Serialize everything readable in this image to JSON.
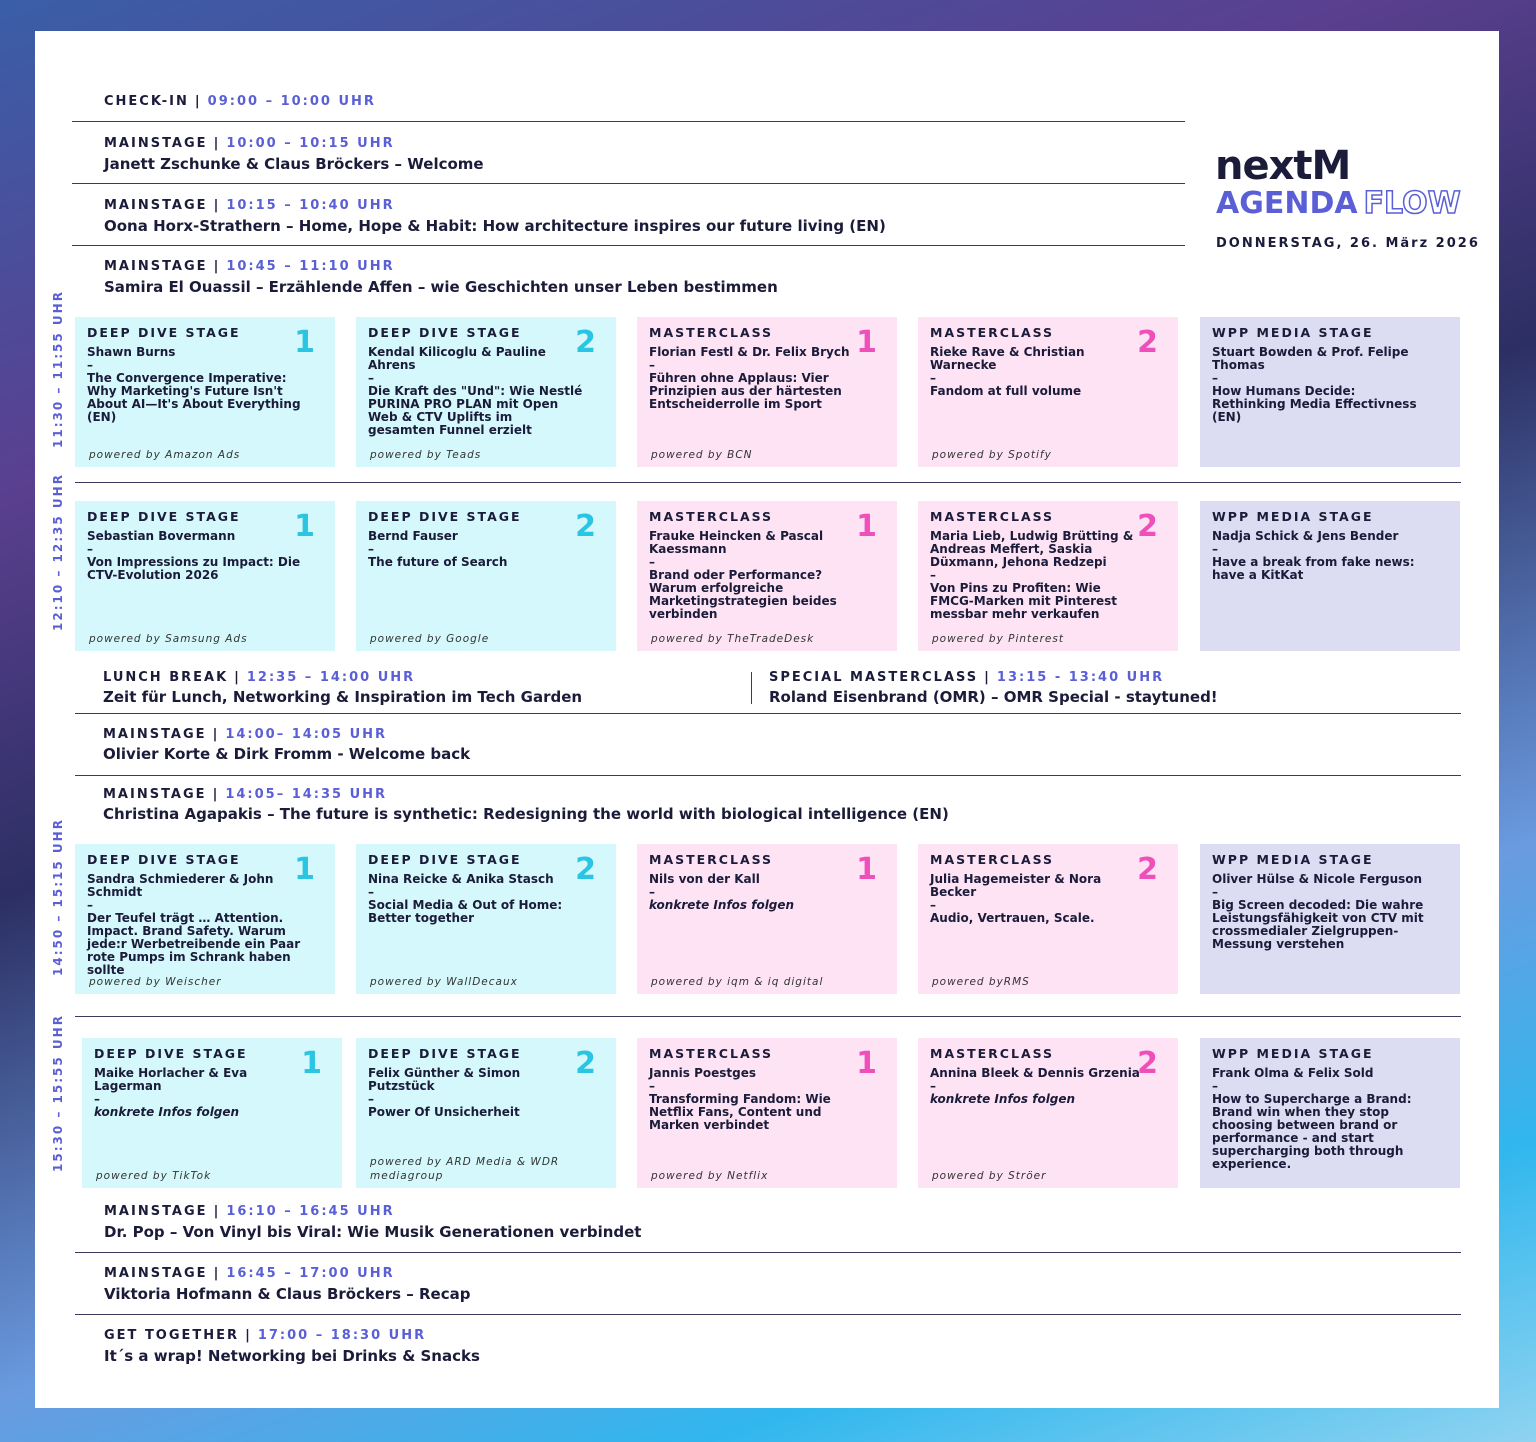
{
  "brand": {
    "logo": "nextM",
    "agenda": "AGENDA",
    "flow": "FLOW",
    "date": "DONNERSTAG, 26. März 2026"
  },
  "rows": {
    "checkin": {
      "label": "CHECK-IN",
      "time": "09:00 – 10:00 UHR",
      "title": ""
    },
    "m1": {
      "label": "MAINSTAGE",
      "time": "10:00 – 10:15 UHR",
      "title": "Janett Zschunke & Claus Bröckers – Welcome"
    },
    "m2": {
      "label": "MAINSTAGE",
      "time": "10:15 – 10:40 UHR",
      "title": "Oona Horx-Strathern – Home, Hope & Habit: How architecture inspires our future living (EN)"
    },
    "m3": {
      "label": "MAINSTAGE",
      "time": "10:45 – 11:10 UHR",
      "title": "Samira El Ouassil – Erzählende Affen – wie Geschichten unser Leben bestimmen"
    },
    "lunch": {
      "label": "LUNCH BREAK",
      "time": "12:35 – 14:00 UHR",
      "title": "Zeit für Lunch, Networking & Inspiration im Tech Garden"
    },
    "special": {
      "label": "SPECIAL MASTERCLASS",
      "time": "13:15 - 13:40 UHR",
      "title": "Roland Eisenbrand (OMR) – OMR Special - staytuned!"
    },
    "m4": {
      "label": "MAINSTAGE",
      "time": "14:00– 14:05 UHR",
      "title": "Olivier Korte & Dirk Fromm - Welcome back"
    },
    "m5": {
      "label": "MAINSTAGE",
      "time": "14:05– 14:35 UHR",
      "title": "Christina Agapakis – The future is synthetic: Redesigning the world with biological intelligence (EN)"
    },
    "m6": {
      "label": "MAINSTAGE",
      "time": "16:10 – 16:45 UHR",
      "title": "Dr. Pop – Von Vinyl bis Viral: Wie Musik Generationen verbindet"
    },
    "m7": {
      "label": "MAINSTAGE",
      "time": "16:45 – 17:00 UHR",
      "title": "Viktoria Hofmann & Claus Bröckers – Recap"
    },
    "get": {
      "label": "GET TOGETHER",
      "time": "17:00 – 18:30 UHR",
      "title": "It´s a wrap! Networking bei Drinks & Snacks"
    }
  },
  "blocks": [
    {
      "time": "11:30 – 11:55 UHR",
      "cards": [
        {
          "stage": "DEEP DIVE STAGE",
          "num": "1",
          "speakers": "Shawn Burns",
          "talk": "The Convergence Imperative: Why Marketing's Future Isn't About AI—It's About Everything (EN)",
          "powered": "powered by Amazon Ads"
        },
        {
          "stage": "DEEP DIVE STAGE",
          "num": "2",
          "speakers": "Kendal Kilicoglu & Pauline Ahrens",
          "talk": "Die Kraft des \"Und\": Wie Nestlé PURINA PRO PLAN mit Open Web & CTV Uplifts im gesamten Funnel erzielt",
          "powered": "powered by Teads"
        },
        {
          "stage": "MASTERCLASS",
          "num": "1",
          "speakers": "Florian Festl & Dr. Felix Brych",
          "talk": "Führen ohne Applaus: Vier Prinzipien aus der härtesten Entscheiderrolle im Sport",
          "powered": "powered by BCN"
        },
        {
          "stage": "MASTERCLASS",
          "num": "2",
          "speakers": "Rieke Rave & Christian Warnecke",
          "talk": "Fandom at full volume",
          "powered": "powered by Spotify"
        },
        {
          "stage": "WPP MEDIA STAGE",
          "num": "",
          "speakers": "Stuart Bowden & Prof. Felipe Thomas",
          "talk": "How Humans Decide: Rethinking Media Effectivness (EN)",
          "powered": ""
        }
      ]
    },
    {
      "time": "12:10 – 12:35 UHR",
      "cards": [
        {
          "stage": "DEEP DIVE STAGE",
          "num": "1",
          "speakers": "Sebastian Bovermann",
          "talk": "Von Impressions zu Impact: Die CTV-Evolution 2026",
          "powered": "powered by Samsung Ads"
        },
        {
          "stage": "DEEP DIVE STAGE",
          "num": "2",
          "speakers": "Bernd Fauser",
          "talk": "The future of Search",
          "powered": "powered by Google"
        },
        {
          "stage": "MASTERCLASS",
          "num": "1",
          "speakers": "Frauke Heincken & Pascal Kaessmann",
          "talk": "Brand oder Performance? Warum erfolgreiche Marketingstrategien beides verbinden",
          "powered": "powered by TheTradeDesk"
        },
        {
          "stage": "MASTERCLASS",
          "num": "2",
          "speakers": "Maria Lieb, Ludwig Brütting & Andreas Meffert, Saskia Düxmann, Jehona Redzepi",
          "talk": "Von Pins zu Profiten: Wie FMCG-Marken mit Pinterest messbar mehr verkaufen",
          "powered": "powered by Pinterest"
        },
        {
          "stage": "WPP MEDIA STAGE",
          "num": "",
          "speakers": "Nadja Schick & Jens Bender",
          "talk": "Have a break from fake news: have a KitKat",
          "powered": ""
        }
      ]
    },
    {
      "time": "14:50 – 15:15 UHR",
      "cards": [
        {
          "stage": "DEEP DIVE STAGE",
          "num": "1",
          "speakers": "Sandra Schmiederer & John Schmidt",
          "talk": "Der Teufel trägt … Attention. Impact. Brand Safety. Warum jede:r Werbetreibende ein Paar rote Pumps im Schrank haben sollte",
          "powered": "powered by Weischer"
        },
        {
          "stage": "DEEP DIVE STAGE",
          "num": "2",
          "speakers": "Nina Reicke & Anika Stasch",
          "talk": "Social Media & Out of Home: Better together",
          "powered": "powered by WallDecaux"
        },
        {
          "stage": "MASTERCLASS",
          "num": "1",
          "speakers": "Nils von der Kall",
          "talk": "konkrete Infos folgen",
          "italic": true,
          "powered": "powered by iqm & iq digital"
        },
        {
          "stage": "MASTERCLASS",
          "num": "2",
          "speakers": "Julia Hagemeister & Nora Becker",
          "talk": "Audio, Vertrauen, Scale.",
          "powered": "powered byRMS"
        },
        {
          "stage": "WPP MEDIA STAGE",
          "num": "",
          "speakers": "Oliver Hülse & Nicole Ferguson",
          "talk": "Big Screen decoded: Die wahre Leistungsfähigkeit von CTV mit crossmedialer Zielgruppen-Messung verstehen",
          "powered": ""
        }
      ]
    },
    {
      "time": "15:30 – 15:55 UHR",
      "cards": [
        {
          "stage": "DEEP DIVE STAGE",
          "num": "1",
          "speakers": "Maike Horlacher & Eva Lagerman",
          "talk": "konkrete Infos folgen",
          "italic": true,
          "powered": "powered by TikTok"
        },
        {
          "stage": "DEEP DIVE STAGE",
          "num": "2",
          "speakers": "Felix Günther & Simon Putzstück",
          "talk": "Power Of Unsicherheit",
          "powered": "powered by ARD Media & WDR mediagroup"
        },
        {
          "stage": "MASTERCLASS",
          "num": "1",
          "speakers": "Jannis Poestges",
          "talk": "Transforming Fandom: Wie Netflix Fans, Content und Marken verbindet",
          "powered": "powered by Netflix"
        },
        {
          "stage": "MASTERCLASS",
          "num": "2",
          "speakers": "Annina Bleek & Dennis Grzenia",
          "talk": "konkrete Infos folgen",
          "italic": true,
          "powered": "powered by Ströer"
        },
        {
          "stage": "WPP MEDIA STAGE",
          "num": "",
          "speakers": "Frank Olma & Felix Sold",
          "talk": "How to Supercharge a Brand: Brand win when they stop choosing between brand or performance - and start supercharging both through experience.",
          "powered": ""
        }
      ]
    }
  ]
}
